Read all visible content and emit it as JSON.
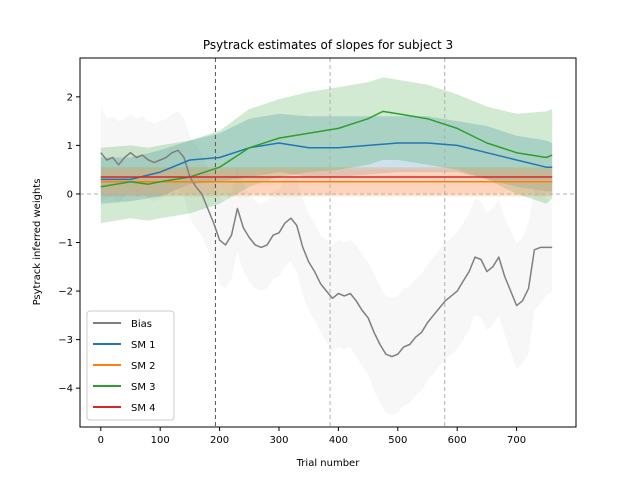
{
  "chart_data": {
    "type": "line",
    "title": "Psytrack estimates of slopes for subject 3",
    "xlabel": "Trial number",
    "ylabel": "Psytrack inferred weights",
    "xlim": [
      -35,
      800
    ],
    "ylim": [
      -4.8,
      2.8
    ],
    "xticks": [
      0,
      100,
      200,
      300,
      400,
      500,
      600,
      700
    ],
    "yticks": [
      -4,
      -3,
      -2,
      -1,
      0,
      1,
      2
    ],
    "hline": {
      "y": 0,
      "style": "dashed",
      "color": "#b0b0b0"
    },
    "vlines": [
      {
        "x": 193,
        "color": "#555555"
      },
      {
        "x": 386,
        "color": "#b0b0b0"
      },
      {
        "x": 579,
        "color": "#b0b0b0"
      }
    ],
    "legend_position": "lower-left",
    "series": [
      {
        "name": "Bias",
        "color": "#7f7f7f",
        "band_color": "#d9d9d9",
        "x": [
          0,
          10,
          20,
          30,
          40,
          50,
          60,
          70,
          80,
          90,
          100,
          110,
          120,
          130,
          140,
          150,
          160,
          170,
          180,
          190,
          200,
          210,
          220,
          230,
          240,
          250,
          260,
          270,
          280,
          290,
          300,
          310,
          320,
          330,
          340,
          350,
          360,
          370,
          380,
          390,
          400,
          410,
          420,
          430,
          440,
          450,
          460,
          470,
          480,
          490,
          500,
          510,
          520,
          530,
          540,
          550,
          560,
          570,
          580,
          590,
          600,
          610,
          620,
          630,
          640,
          650,
          660,
          670,
          680,
          690,
          700,
          710,
          720,
          730,
          740,
          750,
          760
        ],
        "y": [
          0.85,
          0.7,
          0.75,
          0.6,
          0.75,
          0.85,
          0.75,
          0.8,
          0.7,
          0.65,
          0.7,
          0.75,
          0.85,
          0.9,
          0.75,
          0.35,
          0.15,
          0.0,
          -0.3,
          -0.6,
          -0.95,
          -1.05,
          -0.85,
          -0.3,
          -0.7,
          -0.9,
          -1.05,
          -1.1,
          -1.05,
          -0.85,
          -0.8,
          -0.6,
          -0.5,
          -0.65,
          -1.1,
          -1.4,
          -1.6,
          -1.85,
          -2.0,
          -2.15,
          -2.05,
          -2.1,
          -2.05,
          -2.2,
          -2.4,
          -2.55,
          -2.85,
          -3.1,
          -3.3,
          -3.35,
          -3.3,
          -3.15,
          -3.1,
          -2.95,
          -2.85,
          -2.65,
          -2.5,
          -2.35,
          -2.2,
          -2.1,
          -2.0,
          -1.8,
          -1.6,
          -1.3,
          -1.35,
          -1.6,
          -1.5,
          -1.3,
          -1.7,
          -2.0,
          -2.3,
          -2.2,
          -1.95,
          -1.15,
          -1.1,
          -1.1,
          -1.1
        ],
        "upper": [
          1.85,
          1.55,
          1.6,
          1.5,
          1.55,
          1.65,
          1.55,
          1.6,
          1.5,
          1.45,
          1.5,
          1.55,
          1.65,
          1.7,
          1.55,
          1.2,
          1.0,
          0.85,
          0.55,
          0.25,
          -0.05,
          -0.15,
          0.05,
          0.6,
          0.2,
          0.0,
          -0.15,
          -0.2,
          -0.15,
          0.05,
          0.1,
          0.3,
          0.4,
          0.3,
          -0.1,
          -0.4,
          -0.6,
          -0.85,
          -0.95,
          -1.05,
          -0.95,
          -1.0,
          -0.95,
          -1.05,
          -1.25,
          -1.4,
          -1.65,
          -1.9,
          -2.1,
          -2.15,
          -2.1,
          -1.95,
          -1.9,
          -1.75,
          -1.65,
          -1.45,
          -1.3,
          -1.15,
          -1.0,
          -0.9,
          -0.8,
          -0.6,
          -0.4,
          -0.1,
          -0.15,
          -0.4,
          -0.3,
          -0.1,
          -0.5,
          -0.75,
          -1.0,
          -0.9,
          -0.6,
          0.1,
          0.05,
          -0.1,
          -0.2
        ],
        "lower": [
          -0.15,
          -0.1,
          -0.05,
          -0.2,
          -0.05,
          0.05,
          -0.05,
          0.0,
          -0.1,
          -0.15,
          -0.1,
          -0.05,
          0.05,
          0.1,
          -0.05,
          -0.5,
          -0.7,
          -0.85,
          -1.15,
          -1.45,
          -1.85,
          -1.95,
          -1.75,
          -1.2,
          -1.6,
          -1.8,
          -1.95,
          -2.0,
          -1.95,
          -1.75,
          -1.7,
          -1.5,
          -1.4,
          -1.6,
          -2.1,
          -2.4,
          -2.6,
          -2.85,
          -3.05,
          -3.25,
          -3.15,
          -3.2,
          -3.15,
          -3.35,
          -3.55,
          -3.7,
          -4.05,
          -4.3,
          -4.5,
          -4.55,
          -4.5,
          -4.35,
          -4.3,
          -4.15,
          -4.05,
          -3.85,
          -3.7,
          -3.55,
          -3.4,
          -3.3,
          -3.2,
          -3.0,
          -2.8,
          -2.5,
          -2.55,
          -2.8,
          -2.7,
          -2.5,
          -2.9,
          -3.25,
          -3.6,
          -3.5,
          -3.3,
          -2.4,
          -2.25,
          -2.1,
          -2.0
        ]
      },
      {
        "name": "SM 1",
        "color": "#1f77b4",
        "band_color": "#1f77b4",
        "x": [
          0,
          50,
          100,
          150,
          200,
          250,
          300,
          350,
          400,
          450,
          500,
          550,
          600,
          650,
          700,
          750,
          760
        ],
        "y": [
          0.3,
          0.3,
          0.45,
          0.7,
          0.75,
          0.95,
          1.05,
          0.95,
          0.95,
          1.0,
          1.05,
          1.05,
          1.0,
          0.85,
          0.7,
          0.55,
          0.55
        ],
        "upper": [
          0.75,
          0.75,
          0.9,
          1.1,
          1.25,
          1.55,
          1.65,
          1.6,
          1.6,
          1.6,
          1.6,
          1.6,
          1.5,
          1.4,
          1.2,
          1.1,
          1.05
        ],
        "lower": [
          -0.2,
          -0.15,
          -0.05,
          0.2,
          0.25,
          0.35,
          0.45,
          0.35,
          0.35,
          0.4,
          0.45,
          0.45,
          0.45,
          0.3,
          0.15,
          0.05,
          0.05
        ]
      },
      {
        "name": "SM 2",
        "color": "#ff7f0e",
        "band_color": "#ff7f0e",
        "x": [
          0,
          760
        ],
        "y": [
          0.25,
          0.25
        ],
        "upper": [
          0.55,
          0.55
        ],
        "lower": [
          -0.05,
          -0.05
        ]
      },
      {
        "name": "SM 3",
        "color": "#2ca02c",
        "band_color": "#2ca02c",
        "x": [
          0,
          50,
          80,
          100,
          150,
          200,
          250,
          300,
          350,
          400,
          450,
          475,
          500,
          550,
          600,
          650,
          700,
          750,
          760
        ],
        "y": [
          0.15,
          0.25,
          0.2,
          0.25,
          0.35,
          0.55,
          0.95,
          1.15,
          1.25,
          1.35,
          1.55,
          1.7,
          1.65,
          1.55,
          1.35,
          1.05,
          0.85,
          0.75,
          0.8
        ],
        "upper": [
          0.95,
          1.0,
          0.95,
          1.0,
          1.1,
          1.3,
          1.75,
          1.95,
          2.1,
          2.2,
          2.3,
          2.4,
          2.35,
          2.25,
          2.05,
          1.8,
          1.65,
          1.7,
          1.75
        ],
        "lower": [
          -0.6,
          -0.5,
          -0.55,
          -0.5,
          -0.4,
          -0.2,
          0.15,
          0.35,
          0.45,
          0.5,
          0.6,
          0.7,
          0.7,
          0.6,
          0.5,
          0.3,
          0.0,
          -0.2,
          -0.1
        ]
      },
      {
        "name": "SM 4",
        "color": "#d62728",
        "band_color": "#ff9e8e",
        "x": [
          0,
          760
        ],
        "y": [
          0.35,
          0.35
        ],
        "upper": [
          0.5,
          0.5
        ],
        "lower": [
          0.0,
          0.0
        ]
      }
    ]
  }
}
